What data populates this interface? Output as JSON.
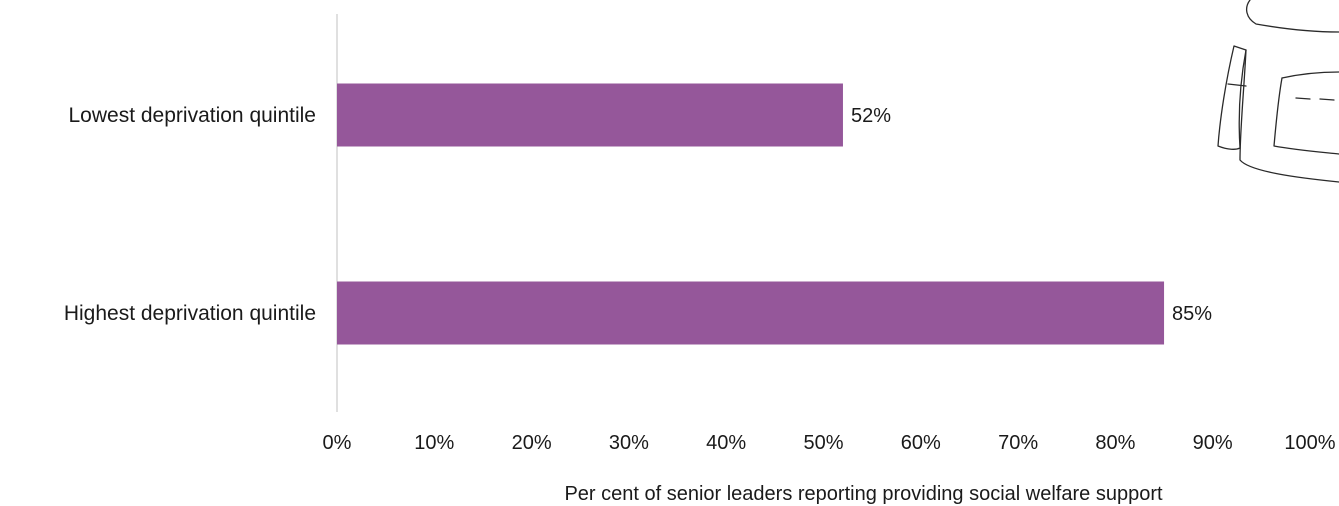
{
  "chart_data": {
    "type": "bar",
    "orientation": "horizontal",
    "categories": [
      "Lowest deprivation quintile",
      "Highest deprivation quintile"
    ],
    "values": [
      52,
      85
    ],
    "data_labels": [
      "52%",
      "85%"
    ],
    "xlabel": "Per cent of senior leaders reporting providing social welfare support",
    "ylabel": "",
    "xlim": [
      0,
      100
    ],
    "x_ticks": [
      0,
      10,
      20,
      30,
      40,
      50,
      60,
      70,
      80,
      90,
      100
    ],
    "x_tick_labels": [
      "0%",
      "10%",
      "20%",
      "30%",
      "40%",
      "50%",
      "60%",
      "70%",
      "80%",
      "90%",
      "100%"
    ],
    "bar_color": "#95579A",
    "grid": false,
    "legend": "none"
  },
  "decoration": {
    "icon": "bag-doodle-icon"
  }
}
